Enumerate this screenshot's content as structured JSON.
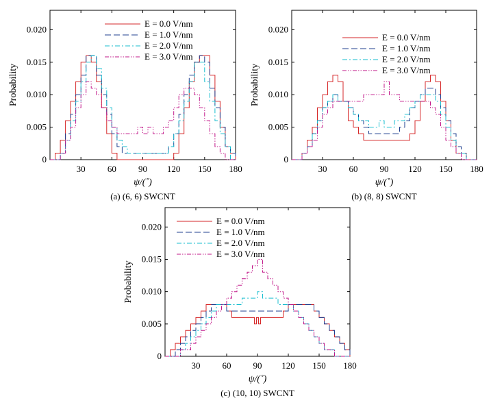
{
  "chart_data": [
    {
      "type": "line",
      "caption": "(a) (6, 6) SWCNT",
      "xlabel": "ψ/(˚)",
      "ylabel": "Probability",
      "xlim": [
        0,
        180
      ],
      "ylim": [
        0,
        0.023
      ],
      "xticks": [
        30,
        60,
        90,
        120,
        150,
        180
      ],
      "yticks": [
        0,
        0.005,
        0.01,
        0.015,
        0.02
      ],
      "ytick_labels": [
        "0",
        "0.005",
        "0.010",
        "0.015",
        "0.020"
      ],
      "grid": false,
      "legend_position": "top-center",
      "series": [
        {
          "name": "E = 0.0 V/nm",
          "color": "#d62728",
          "dash": "",
          "step": true,
          "x": [
            0,
            5,
            10,
            15,
            20,
            25,
            30,
            35,
            40,
            45,
            50,
            55,
            60,
            65,
            70,
            75,
            80,
            85,
            90,
            95,
            100,
            105,
            110,
            115,
            120,
            125,
            130,
            135,
            140,
            145,
            150,
            155,
            160,
            165,
            170,
            175,
            180
          ],
          "y": [
            0,
            0.001,
            0.003,
            0.006,
            0.009,
            0.012,
            0.015,
            0.016,
            0.015,
            0.012,
            0.008,
            0.004,
            0.001,
            0,
            0,
            0,
            0,
            0,
            0,
            0,
            0,
            0,
            0,
            0,
            0.001,
            0.004,
            0.008,
            0.012,
            0.015,
            0.016,
            0.016,
            0.013,
            0.009,
            0.005,
            0.002,
            0.001,
            0
          ]
        },
        {
          "name": "E = 1.0 V/nm",
          "color": "#1f3f8f",
          "dash": "9,4",
          "step": true,
          "x": [
            0,
            5,
            10,
            15,
            20,
            25,
            30,
            35,
            40,
            45,
            50,
            55,
            60,
            65,
            70,
            75,
            80,
            85,
            90,
            95,
            100,
            105,
            110,
            115,
            120,
            125,
            130,
            135,
            140,
            145,
            150,
            155,
            160,
            165,
            170,
            175,
            180
          ],
          "y": [
            0,
            0,
            0.001,
            0.004,
            0.007,
            0.01,
            0.013,
            0.016,
            0.016,
            0.013,
            0.01,
            0.007,
            0.004,
            0.002,
            0.001,
            0.001,
            0.001,
            0.001,
            0.001,
            0.001,
            0.001,
            0.001,
            0.001,
            0.002,
            0.004,
            0.007,
            0.01,
            0.013,
            0.015,
            0.016,
            0.015,
            0.011,
            0.008,
            0.005,
            0.002,
            0.001,
            0
          ]
        },
        {
          "name": "E = 2.0 V/nm",
          "color": "#17becf",
          "dash": "7,3,2,3",
          "step": true,
          "x": [
            0,
            5,
            10,
            15,
            20,
            25,
            30,
            35,
            40,
            45,
            50,
            55,
            60,
            65,
            70,
            75,
            80,
            85,
            90,
            95,
            100,
            105,
            110,
            115,
            120,
            125,
            130,
            135,
            140,
            145,
            150,
            155,
            160,
            165,
            170,
            175,
            180
          ],
          "y": [
            0,
            0,
            0.001,
            0.003,
            0.006,
            0.009,
            0.012,
            0.015,
            0.016,
            0.014,
            0.011,
            0.008,
            0.005,
            0.003,
            0.002,
            0.001,
            0.001,
            0.001,
            0.001,
            0.001,
            0.001,
            0.001,
            0.001,
            0.002,
            0.004,
            0.006,
            0.009,
            0.012,
            0.015,
            0.015,
            0.012,
            0.009,
            0.006,
            0.004,
            0.002,
            0,
            0
          ]
        },
        {
          "name": "E = 3.0 V/nm",
          "color": "#c2188a",
          "dash": "6,2,1.5,2,1.5,2",
          "step": true,
          "x": [
            0,
            5,
            10,
            15,
            20,
            25,
            30,
            35,
            40,
            45,
            50,
            55,
            60,
            65,
            70,
            75,
            80,
            85,
            90,
            95,
            100,
            105,
            110,
            115,
            120,
            125,
            130,
            135,
            140,
            145,
            150,
            155,
            160,
            165,
            170,
            175,
            180
          ],
          "y": [
            0,
            0,
            0.001,
            0.003,
            0.005,
            0.008,
            0.01,
            0.012,
            0.011,
            0.01,
            0.008,
            0.006,
            0.005,
            0.004,
            0.004,
            0.004,
            0.004,
            0.005,
            0.004,
            0.005,
            0.004,
            0.004,
            0.005,
            0.006,
            0.008,
            0.01,
            0.011,
            0.011,
            0.01,
            0.008,
            0.006,
            0.004,
            0.002,
            0.001,
            0,
            0,
            0
          ]
        }
      ]
    },
    {
      "type": "line",
      "caption": "(b) (8, 8) SWCNT",
      "xlabel": "ψ/(˚)",
      "ylabel": "Probability",
      "xlim": [
        0,
        180
      ],
      "ylim": [
        0,
        0.023
      ],
      "xticks": [
        30,
        60,
        90,
        120,
        150,
        180
      ],
      "yticks": [
        0,
        0.005,
        0.01,
        0.015,
        0.02
      ],
      "ytick_labels": [
        "0",
        "0.005",
        "0.010",
        "0.015",
        "0.020"
      ],
      "grid": false,
      "legend_position": "top-right",
      "series": [
        {
          "name": "E = 0.0 V/nm",
          "color": "#d62728",
          "dash": "",
          "step": true,
          "x": [
            0,
            5,
            10,
            15,
            20,
            25,
            30,
            35,
            40,
            45,
            50,
            55,
            60,
            65,
            70,
            75,
            80,
            85,
            90,
            95,
            100,
            105,
            110,
            115,
            120,
            125,
            130,
            135,
            140,
            145,
            150,
            155,
            160,
            165,
            170,
            175,
            180
          ],
          "y": [
            0,
            0,
            0.001,
            0.003,
            0.005,
            0.008,
            0.01,
            0.012,
            0.013,
            0.012,
            0.009,
            0.006,
            0.005,
            0.004,
            0.003,
            0.003,
            0.003,
            0.003,
            0.003,
            0.003,
            0.003,
            0.003,
            0.003,
            0.004,
            0.006,
            0.009,
            0.012,
            0.013,
            0.012,
            0.009,
            0.006,
            0.003,
            0.001,
            0.001,
            0,
            0,
            0
          ]
        },
        {
          "name": "E = 1.0 V/nm",
          "color": "#1f3f8f",
          "dash": "9,4",
          "step": true,
          "x": [
            0,
            5,
            10,
            15,
            20,
            25,
            30,
            35,
            40,
            45,
            50,
            55,
            60,
            65,
            70,
            75,
            80,
            85,
            90,
            95,
            100,
            105,
            110,
            115,
            120,
            125,
            130,
            135,
            140,
            145,
            150,
            155,
            160,
            165,
            170,
            175,
            180
          ],
          "y": [
            0,
            0,
            0.001,
            0.002,
            0.004,
            0.006,
            0.008,
            0.009,
            0.01,
            0.009,
            0.009,
            0.008,
            0.007,
            0.006,
            0.005,
            0.004,
            0.004,
            0.004,
            0.004,
            0.004,
            0.004,
            0.005,
            0.006,
            0.008,
            0.009,
            0.01,
            0.011,
            0.011,
            0.01,
            0.008,
            0.006,
            0.004,
            0.002,
            0.001,
            0,
            0,
            0
          ]
        },
        {
          "name": "E = 2.0 V/nm",
          "color": "#17becf",
          "dash": "7,3,2,3",
          "step": true,
          "x": [
            0,
            5,
            10,
            15,
            20,
            25,
            30,
            35,
            40,
            45,
            50,
            55,
            60,
            65,
            70,
            75,
            80,
            85,
            90,
            95,
            100,
            105,
            110,
            115,
            120,
            125,
            130,
            135,
            140,
            145,
            150,
            155,
            160,
            165,
            170,
            175,
            180
          ],
          "y": [
            0,
            0,
            0.001,
            0.002,
            0.004,
            0.006,
            0.008,
            0.009,
            0.01,
            0.009,
            0.009,
            0.008,
            0.007,
            0.006,
            0.006,
            0.005,
            0.005,
            0.006,
            0.005,
            0.005,
            0.006,
            0.006,
            0.007,
            0.008,
            0.009,
            0.01,
            0.01,
            0.01,
            0.009,
            0.007,
            0.005,
            0.003,
            0.001,
            0.001,
            0,
            0,
            0
          ]
        },
        {
          "name": "E = 3.0 V/nm",
          "color": "#c2188a",
          "dash": "6,2,1.5,2,1.5,2",
          "step": true,
          "x": [
            0,
            5,
            10,
            15,
            20,
            25,
            30,
            35,
            40,
            45,
            50,
            55,
            60,
            65,
            70,
            75,
            80,
            85,
            90,
            95,
            100,
            105,
            110,
            115,
            120,
            125,
            130,
            135,
            140,
            145,
            150,
            155,
            160,
            165,
            170,
            175,
            180
          ],
          "y": [
            0,
            0,
            0.001,
            0.002,
            0.003,
            0.005,
            0.007,
            0.008,
            0.009,
            0.009,
            0.009,
            0.009,
            0.009,
            0.009,
            0.01,
            0.01,
            0.01,
            0.01,
            0.012,
            0.01,
            0.01,
            0.009,
            0.009,
            0.009,
            0.009,
            0.009,
            0.009,
            0.008,
            0.007,
            0.005,
            0.003,
            0.002,
            0.001,
            0,
            0,
            0,
            0
          ]
        }
      ]
    },
    {
      "type": "line",
      "caption": "(c) (10, 10) SWCNT",
      "xlabel": "ψ/(˚)",
      "ylabel": "Probability",
      "xlim": [
        0,
        180
      ],
      "ylim": [
        0,
        0.023
      ],
      "xticks": [
        30,
        60,
        90,
        120,
        150,
        180
      ],
      "yticks": [
        0,
        0.005,
        0.01,
        0.015,
        0.02
      ],
      "ytick_labels": [
        "0",
        "0.005",
        "0.010",
        "0.015",
        "0.020"
      ],
      "grid": false,
      "legend_position": "top-left",
      "series": [
        {
          "name": "E = 0.0 V/nm",
          "color": "#d62728",
          "dash": "",
          "step": true,
          "x": [
            0,
            5,
            10,
            15,
            20,
            25,
            30,
            35,
            40,
            45,
            50,
            55,
            60,
            65,
            70,
            75,
            80,
            85,
            87,
            89,
            91,
            93,
            95,
            100,
            105,
            110,
            115,
            120,
            125,
            130,
            135,
            140,
            145,
            150,
            155,
            160,
            165,
            170,
            175,
            180
          ],
          "y": [
            0,
            0.001,
            0.002,
            0.003,
            0.004,
            0.005,
            0.006,
            0.007,
            0.008,
            0.008,
            0.008,
            0.008,
            0.007,
            0.006,
            0.006,
            0.006,
            0.006,
            0.006,
            0.005,
            0.006,
            0.005,
            0.006,
            0.006,
            0.006,
            0.006,
            0.006,
            0.007,
            0.008,
            0.008,
            0.008,
            0.008,
            0.008,
            0.007,
            0.006,
            0.005,
            0.004,
            0.003,
            0.002,
            0.001,
            0
          ]
        },
        {
          "name": "E = 1.0 V/nm",
          "color": "#1f3f8f",
          "dash": "9,4",
          "step": true,
          "x": [
            0,
            5,
            10,
            15,
            20,
            25,
            30,
            35,
            40,
            45,
            50,
            55,
            60,
            65,
            70,
            75,
            80,
            85,
            90,
            95,
            100,
            105,
            110,
            115,
            120,
            125,
            130,
            135,
            140,
            145,
            150,
            155,
            160,
            165,
            170,
            175,
            180
          ],
          "y": [
            0,
            0,
            0.001,
            0.002,
            0.003,
            0.004,
            0.005,
            0.006,
            0.007,
            0.008,
            0.008,
            0.008,
            0.007,
            0.007,
            0.007,
            0.007,
            0.007,
            0.007,
            0.007,
            0.007,
            0.007,
            0.007,
            0.007,
            0.007,
            0.008,
            0.008,
            0.008,
            0.008,
            0.008,
            0.007,
            0.006,
            0.005,
            0.004,
            0.003,
            0.002,
            0.001,
            0
          ]
        },
        {
          "name": "E = 2.0 V/nm",
          "color": "#17becf",
          "dash": "7,3,2,3",
          "step": true,
          "x": [
            0,
            5,
            10,
            15,
            20,
            25,
            30,
            35,
            40,
            45,
            50,
            55,
            60,
            65,
            70,
            75,
            80,
            85,
            90,
            95,
            100,
            105,
            110,
            115,
            120,
            125,
            130,
            135,
            140,
            145,
            150,
            155,
            160,
            165,
            170,
            175,
            180
          ],
          "y": [
            0,
            0,
            0,
            0.001,
            0.002,
            0.003,
            0.004,
            0.005,
            0.006,
            0.007,
            0.008,
            0.008,
            0.008,
            0.008,
            0.008,
            0.009,
            0.009,
            0.009,
            0.01,
            0.009,
            0.009,
            0.009,
            0.008,
            0.008,
            0.008,
            0.007,
            0.006,
            0.005,
            0.004,
            0.003,
            0.002,
            0.001,
            0.001,
            0,
            0,
            0,
            0
          ]
        },
        {
          "name": "E = 3.0 V/nm",
          "color": "#c2188a",
          "dash": "6,2,1.5,2,1.5,2",
          "step": true,
          "x": [
            0,
            5,
            10,
            15,
            20,
            25,
            30,
            35,
            40,
            45,
            50,
            55,
            60,
            65,
            70,
            75,
            80,
            85,
            90,
            95,
            100,
            105,
            110,
            115,
            120,
            125,
            130,
            135,
            140,
            145,
            150,
            155,
            160,
            165,
            170,
            175,
            180
          ],
          "y": [
            0,
            0,
            0,
            0.001,
            0.001,
            0.002,
            0.003,
            0.004,
            0.005,
            0.006,
            0.007,
            0.008,
            0.009,
            0.01,
            0.011,
            0.012,
            0.013,
            0.014,
            0.015,
            0.013,
            0.012,
            0.011,
            0.01,
            0.009,
            0.008,
            0.007,
            0.006,
            0.005,
            0.004,
            0.003,
            0.002,
            0.001,
            0.001,
            0,
            0,
            0,
            0
          ]
        }
      ]
    }
  ]
}
